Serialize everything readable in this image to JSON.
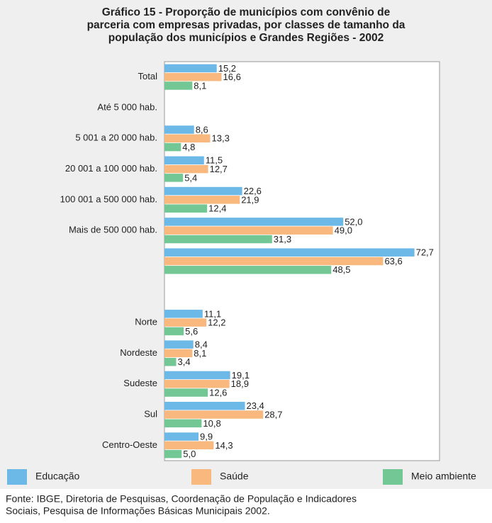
{
  "chart_data": {
    "type": "bar",
    "orientation": "horizontal",
    "title": [
      "Gráfico 15 - Proporção de municípios com convênio de",
      "parceria com empresas privadas, por classes de tamanho da",
      "população dos municípios e Grandes Regiões - 2002"
    ],
    "categories": [
      "Total",
      "Até 5 000 hab.",
      "5 001 a 20 000 hab.",
      "20 001 a 100 000  hab.",
      "100 001 a 500 000 hab.",
      "Mais de 500 000 hab.",
      null,
      null,
      "Norte",
      "Nordeste",
      "Sudeste",
      "Sul",
      "Centro-Oeste"
    ],
    "series": [
      {
        "name": "Educação",
        "color": "#6cb9e8",
        "values": [
          15.2,
          null,
          8.6,
          11.5,
          22.6,
          52.0,
          72.7,
          null,
          11.1,
          8.4,
          19.1,
          23.4,
          9.9
        ],
        "value_labels": [
          "15,2",
          null,
          "8,6",
          "11,5",
          "22,6",
          "52,0",
          "72,7",
          null,
          "11,1",
          "8,4",
          "19,1",
          "23,4",
          "9,9"
        ]
      },
      {
        "name": "Saúde",
        "color": "#f9b97e",
        "values": [
          16.6,
          null,
          13.3,
          12.7,
          21.9,
          49.0,
          63.6,
          null,
          12.2,
          8.1,
          18.9,
          28.7,
          14.3
        ],
        "value_labels": [
          "16,6",
          null,
          "13,3",
          "12,7",
          "21,9",
          "49,0",
          "63,6",
          null,
          "12,2",
          "8,1",
          "18,9",
          "28,7",
          "14,3"
        ]
      },
      {
        "name": "Meio ambiente",
        "color": "#72c795",
        "values": [
          8.1,
          null,
          4.8,
          5.4,
          12.4,
          31.3,
          48.5,
          null,
          5.6,
          3.4,
          12.6,
          10.8,
          5.0
        ],
        "value_labels": [
          "8,1",
          null,
          "4,8",
          "5,4",
          "12,4",
          "31,3",
          "48,5",
          null,
          "5,6",
          "3,4",
          "12,6",
          "10,8",
          "5,0"
        ]
      }
    ],
    "xlim": [
      0,
      80
    ],
    "source": [
      "Fonte: IBGE, Diretoria de Pesquisas, Coordenação de População e Indicadores",
      "Sociais, Pesquisa de Informações Básicas Municipais 2002."
    ]
  }
}
